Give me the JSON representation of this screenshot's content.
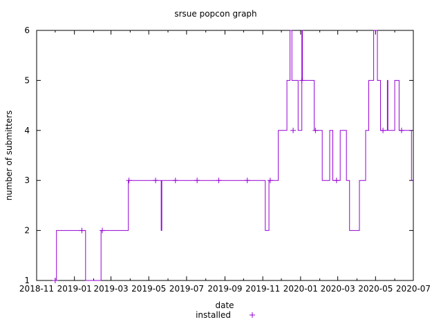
{
  "chart_data": {
    "type": "line",
    "title": "srsue popcon graph",
    "xlabel": "date",
    "ylabel": "number of submitters",
    "ylim": [
      1,
      6
    ],
    "xlim": [
      "2018-11-01",
      "2020-07-01"
    ],
    "x_ticks": [
      "2018-11",
      "2019-01",
      "2019-03",
      "2019-05",
      "2019-07",
      "2019-09",
      "2019-11",
      "2020-01",
      "2020-03",
      "2020-05",
      "2020-07"
    ],
    "y_ticks": [
      1,
      2,
      3,
      4,
      5,
      6
    ],
    "grid": false,
    "legend_position": "bottom-right",
    "series": [
      {
        "name": "installed",
        "color": "#9400d3",
        "marker": "+",
        "steps": [
          [
            "2018-12-01",
            1
          ],
          [
            "2018-12-03",
            2
          ],
          [
            "2019-01-19",
            1
          ],
          [
            "2019-02-13",
            2
          ],
          [
            "2019-03-29",
            3
          ],
          [
            "2019-05-21",
            2
          ],
          [
            "2019-05-22",
            3
          ],
          [
            "2019-11-05",
            2
          ],
          [
            "2019-11-11",
            3
          ],
          [
            "2019-11-26",
            4
          ],
          [
            "2019-12-10",
            5
          ],
          [
            "2019-12-15",
            6
          ],
          [
            "2019-12-18",
            5
          ],
          [
            "2019-12-28",
            4
          ],
          [
            "2020-01-03",
            6
          ],
          [
            "2020-01-04",
            5
          ],
          [
            "2020-01-23",
            4
          ],
          [
            "2020-02-05",
            3
          ],
          [
            "2020-02-17",
            4
          ],
          [
            "2020-02-22",
            3
          ],
          [
            "2020-03-05",
            4
          ],
          [
            "2020-03-15",
            3
          ],
          [
            "2020-03-20",
            2
          ],
          [
            "2020-04-05",
            3
          ],
          [
            "2020-04-15",
            4
          ],
          [
            "2020-04-20",
            5
          ],
          [
            "2020-04-28",
            6
          ],
          [
            "2020-05-04",
            5
          ],
          [
            "2020-05-09",
            4
          ],
          [
            "2020-05-20",
            5
          ],
          [
            "2020-05-21",
            4
          ],
          [
            "2020-06-01",
            5
          ],
          [
            "2020-06-08",
            4
          ],
          [
            "2020-06-28",
            3
          ],
          [
            "2020-07-01",
            3
          ]
        ],
        "markers": [
          [
            "2018-12-01",
            1
          ],
          [
            "2019-01-13",
            2
          ],
          [
            "2019-02-15",
            2
          ],
          [
            "2019-03-30",
            3
          ],
          [
            "2019-05-12",
            3
          ],
          [
            "2019-06-13",
            3
          ],
          [
            "2019-07-18",
            3
          ],
          [
            "2019-08-22",
            3
          ],
          [
            "2019-10-07",
            3
          ],
          [
            "2019-11-13",
            3
          ],
          [
            "2019-12-20",
            4
          ],
          [
            "2020-01-03",
            5
          ],
          [
            "2020-01-25",
            4
          ],
          [
            "2020-02-28",
            3
          ],
          [
            "2020-05-13",
            4
          ],
          [
            "2020-06-12",
            4
          ]
        ]
      }
    ]
  }
}
